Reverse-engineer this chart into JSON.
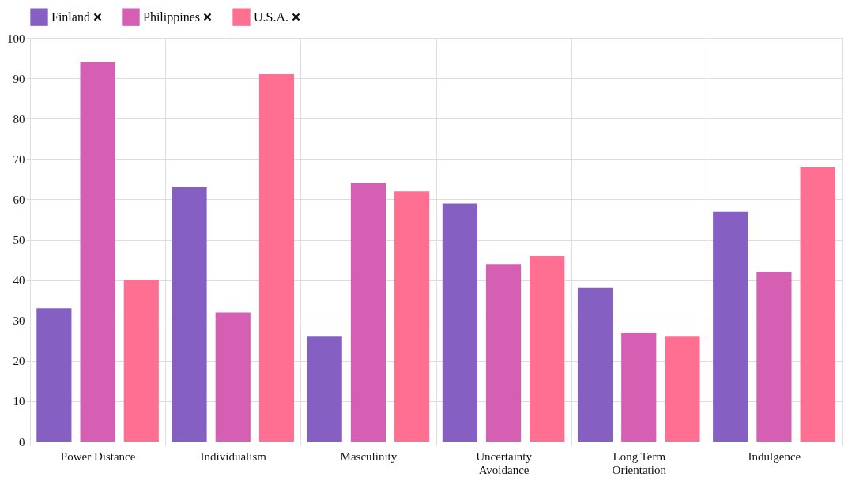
{
  "chart_data": {
    "type": "bar",
    "categories": [
      "Power Distance",
      "Individualism",
      "Masculinity",
      "Uncertainty Avoidance",
      "Long Term Orientation",
      "Indulgence"
    ],
    "series": [
      {
        "name": "Finland",
        "color": "#865fc3",
        "values": [
          33,
          63,
          26,
          59,
          38,
          57
        ]
      },
      {
        "name": "Philippines",
        "color": "#d55fb3",
        "values": [
          94,
          32,
          64,
          44,
          27,
          42
        ]
      },
      {
        "name": "U.S.A.",
        "color": "#ff6f91",
        "values": [
          40,
          91,
          62,
          46,
          26,
          68
        ]
      }
    ],
    "ylim": [
      0,
      100
    ],
    "yticks": [
      0,
      10,
      20,
      30,
      40,
      50,
      60,
      70,
      80,
      90,
      100
    ],
    "grid": true,
    "legend": "top"
  }
}
